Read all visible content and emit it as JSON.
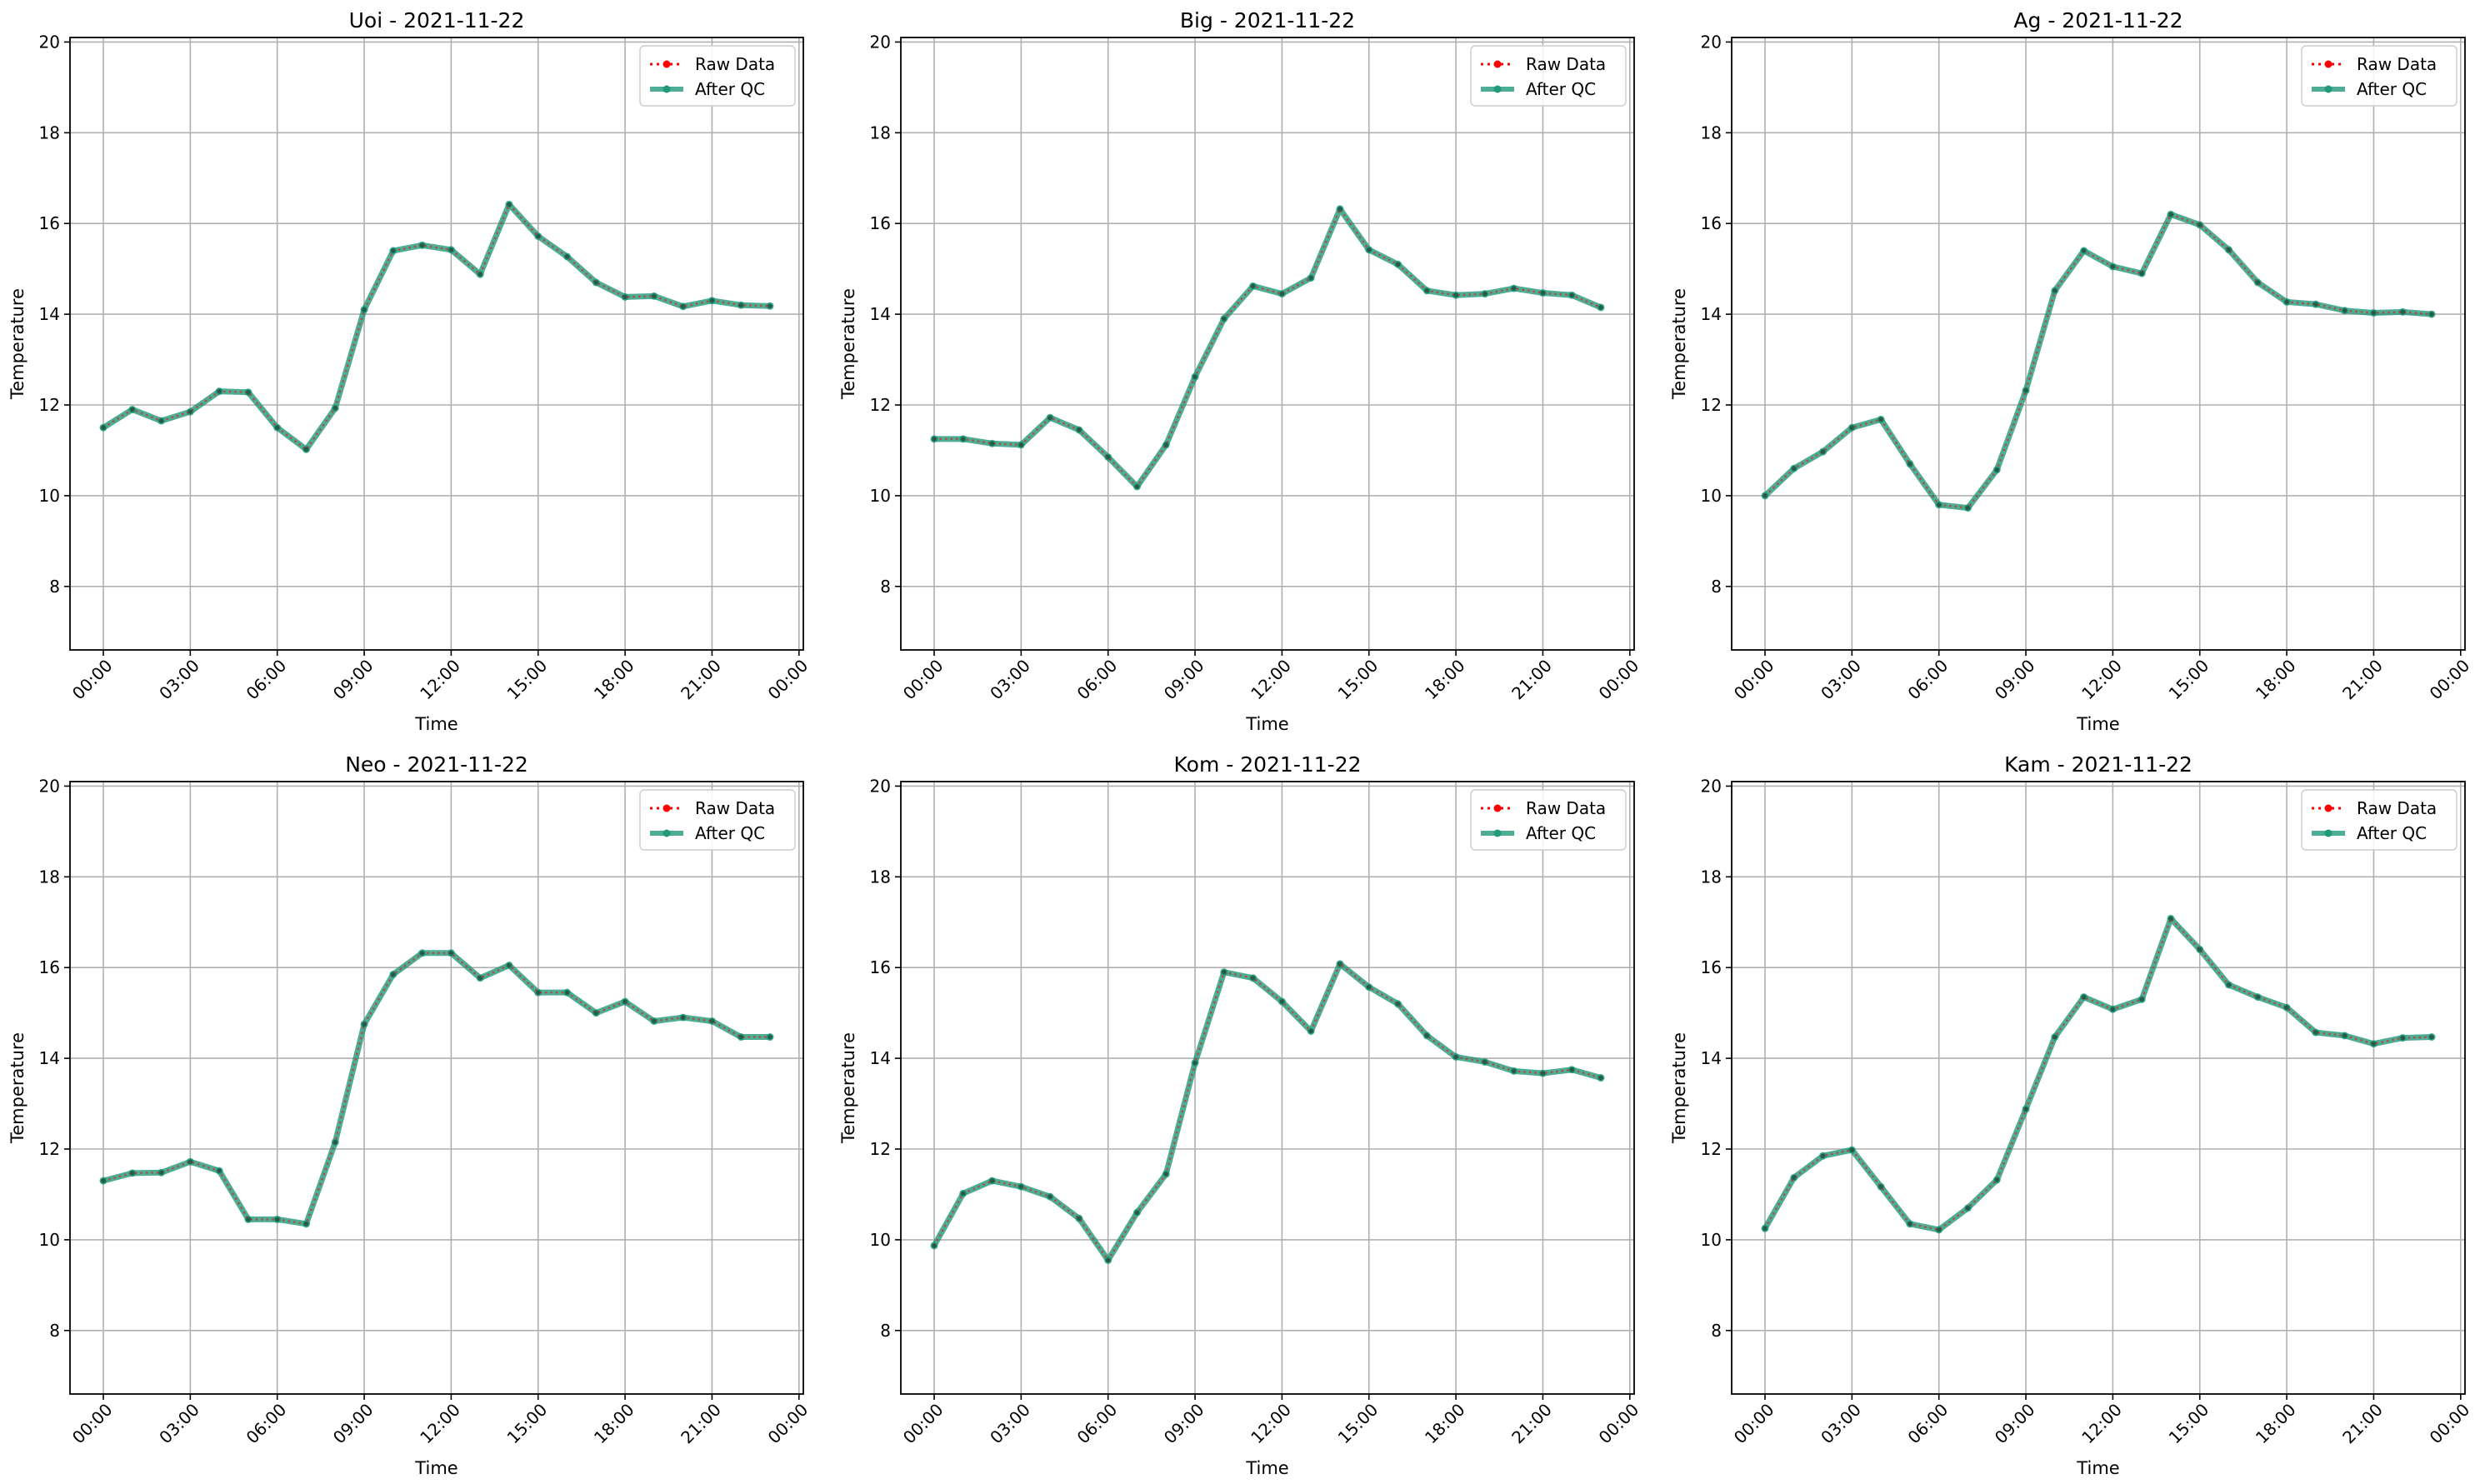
{
  "figure": {
    "background": "#ffffff"
  },
  "style": {
    "raw_color": "#ff0000",
    "qc_color": "#22997a",
    "grid_color": "#b0b0b0"
  },
  "chart_data": [
    {
      "type": "line",
      "title": "Uoi - 2021-11-22",
      "xlabel": "Time",
      "ylabel": "Temperature",
      "ylim": [
        6.6,
        20.1
      ],
      "yticks": [
        8,
        10,
        12,
        14,
        16,
        18,
        20
      ],
      "xlim_hours": [
        -1.15,
        24.15
      ],
      "xtick_labels": [
        "00:00",
        "03:00",
        "06:00",
        "09:00",
        "12:00",
        "15:00",
        "18:00",
        "21:00",
        "00:00"
      ],
      "grid": true,
      "legend": "top-right",
      "x": [
        "00:00",
        "01:00",
        "02:00",
        "03:00",
        "04:00",
        "05:00",
        "06:00",
        "07:00",
        "08:00",
        "09:00",
        "10:00",
        "11:00",
        "12:00",
        "13:00",
        "14:00",
        "15:00",
        "16:00",
        "17:00",
        "18:00",
        "19:00",
        "20:00",
        "21:00",
        "22:00",
        "23:00"
      ],
      "series": [
        {
          "name": "Raw Data",
          "values": [
            11.5,
            11.9,
            11.65,
            11.85,
            12.3,
            12.28,
            11.5,
            11.02,
            11.93,
            14.1,
            15.4,
            15.52,
            15.42,
            14.88,
            16.42,
            15.72,
            15.27,
            14.7,
            14.38,
            14.4,
            14.17,
            14.3,
            14.2,
            14.18
          ]
        },
        {
          "name": "After QC",
          "values": [
            11.5,
            11.9,
            11.65,
            11.85,
            12.3,
            12.28,
            11.5,
            11.02,
            11.93,
            14.1,
            15.4,
            15.52,
            15.42,
            14.88,
            16.42,
            15.72,
            15.27,
            14.7,
            14.38,
            14.4,
            14.17,
            14.3,
            14.2,
            14.18
          ]
        }
      ]
    },
    {
      "type": "line",
      "title": "Big - 2021-11-22",
      "xlabel": "Time",
      "ylabel": "Temperature",
      "ylim": [
        6.6,
        20.1
      ],
      "yticks": [
        8,
        10,
        12,
        14,
        16,
        18,
        20
      ],
      "xlim_hours": [
        -1.15,
        24.15
      ],
      "xtick_labels": [
        "00:00",
        "03:00",
        "06:00",
        "09:00",
        "12:00",
        "15:00",
        "18:00",
        "21:00",
        "00:00"
      ],
      "grid": true,
      "legend": "top-right",
      "x": [
        "00:00",
        "01:00",
        "02:00",
        "03:00",
        "04:00",
        "05:00",
        "06:00",
        "07:00",
        "08:00",
        "09:00",
        "10:00",
        "11:00",
        "12:00",
        "13:00",
        "14:00",
        "15:00",
        "16:00",
        "17:00",
        "18:00",
        "19:00",
        "20:00",
        "21:00",
        "22:00",
        "23:00"
      ],
      "series": [
        {
          "name": "Raw Data",
          "values": [
            11.25,
            11.25,
            11.15,
            11.12,
            11.72,
            11.45,
            10.85,
            10.2,
            11.12,
            12.62,
            13.9,
            14.62,
            14.45,
            14.8,
            16.32,
            15.42,
            15.1,
            14.52,
            14.42,
            14.45,
            14.57,
            14.47,
            14.42,
            14.15
          ]
        },
        {
          "name": "After QC",
          "values": [
            11.25,
            11.25,
            11.15,
            11.12,
            11.72,
            11.45,
            10.85,
            10.2,
            11.12,
            12.62,
            13.9,
            14.62,
            14.45,
            14.8,
            16.32,
            15.42,
            15.1,
            14.52,
            14.42,
            14.45,
            14.57,
            14.47,
            14.42,
            14.15
          ]
        }
      ]
    },
    {
      "type": "line",
      "title": "Ag - 2021-11-22",
      "xlabel": "Time",
      "ylabel": "Temperature",
      "ylim": [
        6.6,
        20.1
      ],
      "yticks": [
        8,
        10,
        12,
        14,
        16,
        18,
        20
      ],
      "xlim_hours": [
        -1.15,
        24.15
      ],
      "xtick_labels": [
        "00:00",
        "03:00",
        "06:00",
        "09:00",
        "12:00",
        "15:00",
        "18:00",
        "21:00",
        "00:00"
      ],
      "grid": true,
      "legend": "top-right",
      "x": [
        "00:00",
        "01:00",
        "02:00",
        "03:00",
        "04:00",
        "05:00",
        "06:00",
        "07:00",
        "08:00",
        "09:00",
        "10:00",
        "11:00",
        "12:00",
        "13:00",
        "14:00",
        "15:00",
        "16:00",
        "17:00",
        "18:00",
        "19:00",
        "20:00",
        "21:00",
        "22:00",
        "23:00"
      ],
      "series": [
        {
          "name": "Raw Data",
          "values": [
            10.0,
            10.6,
            10.97,
            11.5,
            11.68,
            10.7,
            9.8,
            9.73,
            10.57,
            12.32,
            14.52,
            15.4,
            15.05,
            14.9,
            16.2,
            15.97,
            15.42,
            14.7,
            14.27,
            14.22,
            14.08,
            14.03,
            14.05,
            14.0
          ]
        },
        {
          "name": "After QC",
          "values": [
            10.0,
            10.6,
            10.97,
            11.5,
            11.68,
            10.7,
            9.8,
            9.73,
            10.57,
            12.32,
            14.52,
            15.4,
            15.05,
            14.9,
            16.2,
            15.97,
            15.42,
            14.7,
            14.27,
            14.22,
            14.08,
            14.03,
            14.05,
            14.0
          ]
        }
      ]
    },
    {
      "type": "line",
      "title": "Neo - 2021-11-22",
      "xlabel": "Time",
      "ylabel": "Temperature",
      "ylim": [
        6.6,
        20.1
      ],
      "yticks": [
        8,
        10,
        12,
        14,
        16,
        18,
        20
      ],
      "xlim_hours": [
        -1.15,
        24.15
      ],
      "xtick_labels": [
        "00:00",
        "03:00",
        "06:00",
        "09:00",
        "12:00",
        "15:00",
        "18:00",
        "21:00",
        "00:00"
      ],
      "grid": true,
      "legend": "top-right",
      "x": [
        "00:00",
        "01:00",
        "02:00",
        "03:00",
        "04:00",
        "05:00",
        "06:00",
        "07:00",
        "08:00",
        "09:00",
        "10:00",
        "11:00",
        "12:00",
        "13:00",
        "14:00",
        "15:00",
        "16:00",
        "17:00",
        "18:00",
        "19:00",
        "20:00",
        "21:00",
        "22:00",
        "23:00"
      ],
      "series": [
        {
          "name": "Raw Data",
          "values": [
            11.3,
            11.47,
            11.48,
            11.72,
            11.52,
            10.45,
            10.45,
            10.35,
            12.15,
            14.75,
            15.85,
            16.32,
            16.32,
            15.77,
            16.05,
            15.45,
            15.45,
            15.0,
            15.25,
            14.82,
            14.9,
            14.82,
            14.47,
            14.47
          ]
        },
        {
          "name": "After QC",
          "values": [
            11.3,
            11.47,
            11.48,
            11.72,
            11.52,
            10.45,
            10.45,
            10.35,
            12.15,
            14.75,
            15.85,
            16.32,
            16.32,
            15.77,
            16.05,
            15.45,
            15.45,
            15.0,
            15.25,
            14.82,
            14.9,
            14.82,
            14.47,
            14.47
          ]
        }
      ]
    },
    {
      "type": "line",
      "title": "Kom - 2021-11-22",
      "xlabel": "Time",
      "ylabel": "Temperature",
      "ylim": [
        6.6,
        20.1
      ],
      "yticks": [
        8,
        10,
        12,
        14,
        16,
        18,
        20
      ],
      "xlim_hours": [
        -1.15,
        24.15
      ],
      "xtick_labels": [
        "00:00",
        "03:00",
        "06:00",
        "09:00",
        "12:00",
        "15:00",
        "18:00",
        "21:00",
        "00:00"
      ],
      "grid": true,
      "legend": "top-right",
      "x": [
        "00:00",
        "01:00",
        "02:00",
        "03:00",
        "04:00",
        "05:00",
        "06:00",
        "07:00",
        "08:00",
        "09:00",
        "10:00",
        "11:00",
        "12:00",
        "13:00",
        "14:00",
        "15:00",
        "16:00",
        "17:00",
        "18:00",
        "19:00",
        "20:00",
        "21:00",
        "22:00",
        "23:00"
      ],
      "series": [
        {
          "name": "Raw Data",
          "values": [
            9.87,
            11.02,
            11.3,
            11.17,
            10.95,
            10.47,
            9.55,
            10.6,
            11.45,
            13.9,
            15.9,
            15.77,
            15.25,
            14.6,
            16.08,
            15.57,
            15.2,
            14.5,
            14.03,
            13.92,
            13.72,
            13.67,
            13.75,
            13.57
          ]
        },
        {
          "name": "After QC",
          "values": [
            9.87,
            11.02,
            11.3,
            11.17,
            10.95,
            10.47,
            9.55,
            10.6,
            11.45,
            13.9,
            15.9,
            15.77,
            15.25,
            14.6,
            16.08,
            15.57,
            15.2,
            14.5,
            14.03,
            13.92,
            13.72,
            13.67,
            13.75,
            13.57
          ]
        }
      ]
    },
    {
      "type": "line",
      "title": "Kam - 2021-11-22",
      "xlabel": "Time",
      "ylabel": "Temperature",
      "ylim": [
        6.6,
        20.1
      ],
      "yticks": [
        8,
        10,
        12,
        14,
        16,
        18,
        20
      ],
      "xlim_hours": [
        -1.15,
        24.15
      ],
      "xtick_labels": [
        "00:00",
        "03:00",
        "06:00",
        "09:00",
        "12:00",
        "15:00",
        "18:00",
        "21:00",
        "00:00"
      ],
      "grid": true,
      "legend": "top-right",
      "x": [
        "00:00",
        "01:00",
        "02:00",
        "03:00",
        "04:00",
        "05:00",
        "06:00",
        "07:00",
        "08:00",
        "09:00",
        "10:00",
        "11:00",
        "12:00",
        "13:00",
        "14:00",
        "15:00",
        "16:00",
        "17:00",
        "18:00",
        "19:00",
        "20:00",
        "21:00",
        "22:00",
        "23:00"
      ],
      "series": [
        {
          "name": "Raw Data",
          "values": [
            10.25,
            11.37,
            11.85,
            11.98,
            11.17,
            10.35,
            10.22,
            10.7,
            11.32,
            12.88,
            14.47,
            15.35,
            15.08,
            15.3,
            17.08,
            16.4,
            15.62,
            15.35,
            15.12,
            14.57,
            14.5,
            14.32,
            14.45,
            14.47
          ]
        },
        {
          "name": "After QC",
          "values": [
            10.25,
            11.37,
            11.85,
            11.98,
            11.17,
            10.35,
            10.22,
            10.7,
            11.32,
            12.88,
            14.47,
            15.35,
            15.08,
            15.3,
            17.08,
            16.4,
            15.62,
            15.35,
            15.12,
            14.57,
            14.5,
            14.32,
            14.45,
            14.47
          ]
        }
      ]
    }
  ]
}
